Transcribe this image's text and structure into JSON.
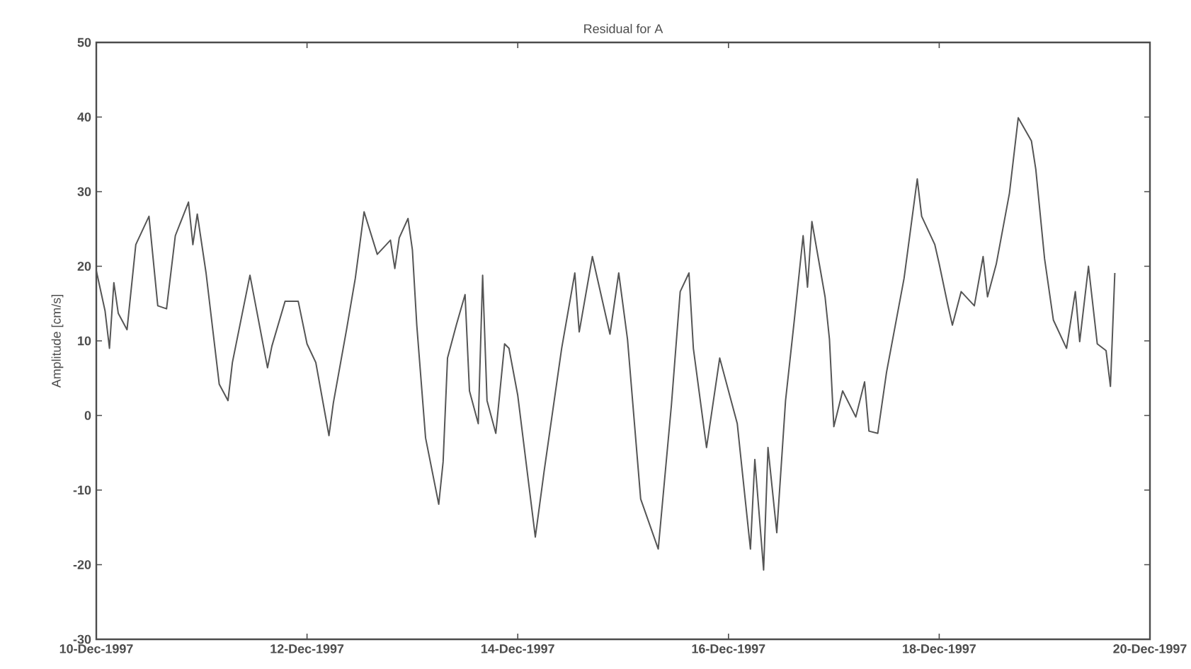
{
  "chart_data": {
    "type": "line",
    "title": "Residual for A",
    "ylabel": "Amplitude [cm/s]",
    "xlim": [
      "1997-12-10",
      "1997-12-20"
    ],
    "xticks": [
      {
        "value": "1997-12-10",
        "label": "10-Dec-1997"
      },
      {
        "value": "1997-12-12",
        "label": "12-Dec-1997"
      },
      {
        "value": "1997-12-14",
        "label": "14-Dec-1997"
      },
      {
        "value": "1997-12-16",
        "label": "16-Dec-1997"
      },
      {
        "value": "1997-12-18",
        "label": "18-Dec-1997"
      },
      {
        "value": "1997-12-20",
        "label": "20-Dec-1997"
      }
    ],
    "ylim": [
      -30,
      50
    ],
    "yticks": [
      -30,
      -20,
      -10,
      0,
      10,
      20,
      30,
      40,
      50
    ],
    "grid": false,
    "x": [
      "1997-12-10T00:00",
      "1997-12-10T02:00",
      "1997-12-10T03:00",
      "1997-12-10T04:00",
      "1997-12-10T05:00",
      "1997-12-10T07:00",
      "1997-12-10T09:00",
      "1997-12-10T12:00",
      "1997-12-10T14:00",
      "1997-12-10T16:00",
      "1997-12-10T18:00",
      "1997-12-10T21:00",
      "1997-12-10T22:00",
      "1997-12-10T23:00",
      "1997-12-11T01:00",
      "1997-12-11T04:00",
      "1997-12-11T06:00",
      "1997-12-11T07:00",
      "1997-12-11T11:00",
      "1997-12-11T15:00",
      "1997-12-11T16:00",
      "1997-12-11T19:00",
      "1997-12-11T22:00",
      "1997-12-12T00:00",
      "1997-12-12T02:00",
      "1997-12-12T05:00",
      "1997-12-12T06:00",
      "1997-12-12T09:00",
      "1997-12-12T11:00",
      "1997-12-12T13:00",
      "1997-12-12T16:00",
      "1997-12-12T19:00",
      "1997-12-12T20:00",
      "1997-12-12T21:00",
      "1997-12-12T23:00",
      "1997-12-13T00:00",
      "1997-12-13T01:00",
      "1997-12-13T03:00",
      "1997-12-13T06:00",
      "1997-12-13T07:00",
      "1997-12-13T08:00",
      "1997-12-13T10:00",
      "1997-12-13T12:00",
      "1997-12-13T13:00",
      "1997-12-13T15:00",
      "1997-12-13T16:00",
      "1997-12-13T17:00",
      "1997-12-13T19:00",
      "1997-12-13T21:00",
      "1997-12-13T22:00",
      "1997-12-14T00:00",
      "1997-12-14T04:00",
      "1997-12-14T06:00",
      "1997-12-14T10:00",
      "1997-12-14T13:00",
      "1997-12-14T14:00",
      "1997-12-14T17:00",
      "1997-12-14T21:00",
      "1997-12-14T23:00",
      "1997-12-15T01:00",
      "1997-12-15T04:00",
      "1997-12-15T08:00",
      "1997-12-15T11:00",
      "1997-12-15T13:00",
      "1997-12-15T15:00",
      "1997-12-15T16:00",
      "1997-12-15T19:00",
      "1997-12-15T22:00",
      "1997-12-16T02:00",
      "1997-12-16T05:00",
      "1997-12-16T06:00",
      "1997-12-16T08:00",
      "1997-12-16T09:00",
      "1997-12-16T11:00",
      "1997-12-16T13:00",
      "1997-12-16T15:00",
      "1997-12-16T17:00",
      "1997-12-16T18:00",
      "1997-12-16T19:00",
      "1997-12-16T22:00",
      "1997-12-16T23:00",
      "1997-12-17T00:00",
      "1997-12-17T02:00",
      "1997-12-17T05:00",
      "1997-12-17T07:00",
      "1997-12-17T08:00",
      "1997-12-17T10:00",
      "1997-12-17T12:00",
      "1997-12-17T14:00",
      "1997-12-17T16:00",
      "1997-12-17T19:00",
      "1997-12-17T20:00",
      "1997-12-17T23:00",
      "1997-12-18T00:00",
      "1997-12-18T02:00",
      "1997-12-18T03:00",
      "1997-12-18T05:00",
      "1997-12-18T08:00",
      "1997-12-18T10:00",
      "1997-12-18T11:00",
      "1997-12-18T13:00",
      "1997-12-18T16:00",
      "1997-12-18T18:00",
      "1997-12-18T21:00",
      "1997-12-18T22:00",
      "1997-12-19T00:00",
      "1997-12-19T02:00",
      "1997-12-19T05:00",
      "1997-12-19T07:00",
      "1997-12-19T08:00",
      "1997-12-19T10:00",
      "1997-12-19T12:00",
      "1997-12-19T14:00",
      "1997-12-19T15:00",
      "1997-12-19T16:00"
    ],
    "series": [
      {
        "color": "#555555",
        "values": [
          19.4,
          14,
          9,
          17.8,
          13.7,
          11.5,
          22.9,
          26.7,
          14.7,
          14.3,
          24.1,
          28.6,
          22.9,
          27,
          19.1,
          4.2,
          2,
          7.1,
          18.8,
          6.4,
          9.3,
          15.3,
          15.3,
          9.6,
          7.1,
          -2.7,
          1.7,
          11.5,
          18.4,
          27.3,
          21.6,
          23.5,
          19.7,
          23.8,
          26.4,
          22.2,
          12.1,
          -3,
          -11.9,
          -6.2,
          7.7,
          12.1,
          16.2,
          3.3,
          -1.1,
          18.8,
          2,
          -2.4,
          9.6,
          9,
          2.7,
          -16.3,
          -7.5,
          9,
          19.1,
          11.2,
          21.3,
          10.9,
          19.1,
          10.2,
          -11.2,
          -17.9,
          1.4,
          16.6,
          19.1,
          9,
          -4.3,
          7.7,
          -1.1,
          -17.9,
          -5.9,
          -20.7,
          -4.3,
          -15.7,
          2,
          12.8,
          24.1,
          17.2,
          26,
          15.9,
          10.2,
          -1.5,
          3.3,
          -0.2,
          4.5,
          -2.1,
          -2.4,
          5.8,
          12.1,
          18.4,
          31.7,
          26.7,
          22.9,
          20.3,
          14.7,
          12.1,
          16.6,
          14.7,
          21.3,
          15.9,
          20.3,
          29.8,
          39.9,
          36.8,
          33,
          21,
          12.8,
          9,
          16.6,
          9.9,
          20,
          9.6,
          8.7,
          3.9,
          19.1
        ]
      }
    ]
  }
}
